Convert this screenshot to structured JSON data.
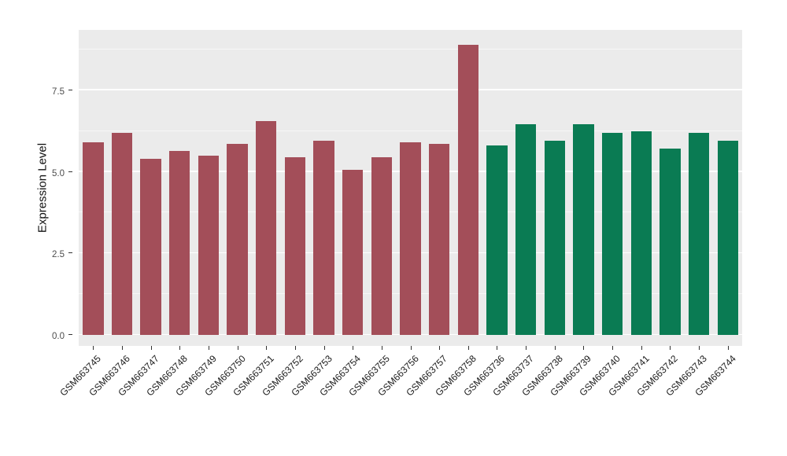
{
  "chart_data": {
    "type": "bar",
    "title": "",
    "xlabel": "",
    "ylabel": "Expression Level",
    "ylim": [
      0,
      9.35
    ],
    "yticks": [
      0.0,
      2.5,
      5.0,
      7.5
    ],
    "ytick_labels": [
      "0.0",
      "2.5",
      "5.0",
      "7.5"
    ],
    "minor_yticks": [
      1.25,
      3.75,
      6.25,
      8.75
    ],
    "grid": true,
    "legend_position": "none",
    "panel_background": "#EBEBEB",
    "categories": [
      "GSM663745",
      "GSM663746",
      "GSM663747",
      "GSM663748",
      "GSM663749",
      "GSM663750",
      "GSM663751",
      "GSM663752",
      "GSM663753",
      "GSM663754",
      "GSM663755",
      "GSM663756",
      "GSM663757",
      "GSM663758",
      "GSM663736",
      "GSM663737",
      "GSM663738",
      "GSM663739",
      "GSM663740",
      "GSM663741",
      "GSM663742",
      "GSM663743",
      "GSM663744"
    ],
    "values": [
      5.9,
      6.2,
      5.4,
      5.65,
      5.5,
      5.85,
      6.55,
      5.45,
      5.95,
      5.05,
      5.45,
      5.9,
      5.85,
      8.9,
      5.8,
      6.45,
      5.95,
      6.45,
      6.2,
      6.25,
      5.7,
      6.2,
      5.95
    ],
    "groups": [
      "red",
      "red",
      "red",
      "red",
      "red",
      "red",
      "red",
      "red",
      "red",
      "red",
      "red",
      "red",
      "red",
      "red",
      "green",
      "green",
      "green",
      "green",
      "green",
      "green",
      "green",
      "green",
      "green"
    ],
    "group_colors": {
      "red": "#A34E59",
      "green": "#0A7B53"
    }
  }
}
